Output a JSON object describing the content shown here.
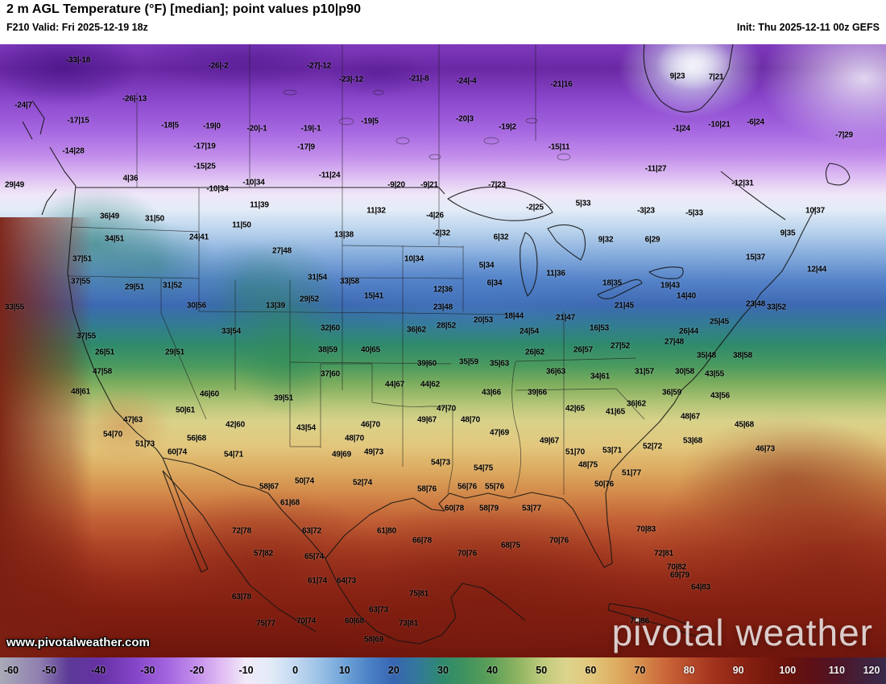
{
  "header": {
    "title": "2 m AGL Temperature (°F) [median]; point values p10|p90",
    "valid": "F210 Valid: Fri 2025-12-19 18z",
    "init": "Init: Thu 2025-12-11 00z GEFS"
  },
  "watermarks": {
    "url": "www.pivotalweather.com",
    "brand": "pivotal weather"
  },
  "colorbar": {
    "unit": "°F",
    "ticks": [
      -60,
      -50,
      -40,
      -30,
      -20,
      -10,
      0,
      10,
      20,
      30,
      40,
      50,
      60,
      70,
      80,
      90,
      100,
      110,
      120
    ],
    "gradient": [
      {
        "v": -60,
        "c": "#a9abb7"
      },
      {
        "v": -52,
        "c": "#8f7fb0"
      },
      {
        "v": -46,
        "c": "#5c3a96"
      },
      {
        "v": -40,
        "c": "#6531a3"
      },
      {
        "v": -32,
        "c": "#8747cb"
      },
      {
        "v": -26,
        "c": "#a465df"
      },
      {
        "v": -20,
        "c": "#c48fec"
      },
      {
        "v": -15,
        "c": "#e0bcf3"
      },
      {
        "v": -10,
        "c": "#f1eaf8"
      },
      {
        "v": -5,
        "c": "#e2ebf7"
      },
      {
        "v": 0,
        "c": "#c2d8f0"
      },
      {
        "v": 5,
        "c": "#9ac1e6"
      },
      {
        "v": 10,
        "c": "#6fa3d8"
      },
      {
        "v": 15,
        "c": "#4a82c6"
      },
      {
        "v": 20,
        "c": "#3765b2"
      },
      {
        "v": 25,
        "c": "#33799a"
      },
      {
        "v": 30,
        "c": "#2f8a6c"
      },
      {
        "v": 35,
        "c": "#42945e"
      },
      {
        "v": 40,
        "c": "#5fa059"
      },
      {
        "v": 45,
        "c": "#8cb360"
      },
      {
        "v": 50,
        "c": "#bcca7a"
      },
      {
        "v": 55,
        "c": "#dcd48c"
      },
      {
        "v": 60,
        "c": "#e2c77c"
      },
      {
        "v": 65,
        "c": "#deae62"
      },
      {
        "v": 70,
        "c": "#d68d4c"
      },
      {
        "v": 75,
        "c": "#ca683a"
      },
      {
        "v": 80,
        "c": "#b84b2a"
      },
      {
        "v": 85,
        "c": "#a2331d"
      },
      {
        "v": 90,
        "c": "#8d2414"
      },
      {
        "v": 95,
        "c": "#7a1a0e"
      },
      {
        "v": 100,
        "c": "#6b130c"
      },
      {
        "v": 105,
        "c": "#5d1016"
      },
      {
        "v": 110,
        "c": "#4f1527"
      },
      {
        "v": 115,
        "c": "#42203a"
      },
      {
        "v": 120,
        "c": "#38294a"
      }
    ]
  },
  "map": {
    "type": "temperature-fill",
    "points": [
      [
        97,
        20,
        "-33|-18"
      ],
      [
        271,
        27,
        "-26|-2"
      ],
      [
        396,
        27,
        "-27|-12"
      ],
      [
        436,
        44,
        "-23|-12"
      ],
      [
        520,
        43,
        "-21|-8"
      ],
      [
        579,
        46,
        "-24|-4"
      ],
      [
        697,
        50,
        "-21|16"
      ],
      [
        841,
        40,
        "9|23"
      ],
      [
        889,
        41,
        "7|21"
      ],
      [
        29,
        76,
        "-24|7"
      ],
      [
        167,
        68,
        "-26|-13"
      ],
      [
        97,
        95,
        "-17|15"
      ],
      [
        211,
        101,
        "-18|5"
      ],
      [
        263,
        102,
        "-19|0"
      ],
      [
        319,
        105,
        "-20|-1"
      ],
      [
        386,
        105,
        "-19|-1"
      ],
      [
        459,
        96,
        "-19|5"
      ],
      [
        577,
        93,
        "-20|3"
      ],
      [
        630,
        103,
        "-19|2"
      ],
      [
        846,
        105,
        "-1|24"
      ],
      [
        893,
        100,
        "-10|21"
      ],
      [
        938,
        97,
        "-6|24"
      ],
      [
        91,
        133,
        "-14|28"
      ],
      [
        254,
        127,
        "-17|19"
      ],
      [
        380,
        128,
        "-17|9"
      ],
      [
        694,
        128,
        "-15|11"
      ],
      [
        1048,
        113,
        "-7|29"
      ],
      [
        162,
        167,
        "4|36"
      ],
      [
        254,
        152,
        "-15|25"
      ],
      [
        270,
        180,
        "-10|34"
      ],
      [
        315,
        172,
        "-10|34"
      ],
      [
        409,
        163,
        "-11|24"
      ],
      [
        492,
        175,
        "-9|20"
      ],
      [
        533,
        175,
        "-9|21"
      ],
      [
        617,
        175,
        "-7|23"
      ],
      [
        814,
        155,
        "-11|27"
      ],
      [
        922,
        173,
        "-12|31"
      ],
      [
        18,
        175,
        "29|49"
      ],
      [
        136,
        214,
        "36|49"
      ],
      [
        322,
        200,
        "11|39"
      ],
      [
        467,
        207,
        "11|32"
      ],
      [
        540,
        213,
        "-4|26"
      ],
      [
        548,
        235,
        "-2|32"
      ],
      [
        664,
        203,
        "-2|25"
      ],
      [
        724,
        198,
        "5|33"
      ],
      [
        802,
        207,
        "-3|23"
      ],
      [
        862,
        210,
        "-5|33"
      ],
      [
        1012,
        207,
        "10|37"
      ],
      [
        978,
        235,
        "9|35"
      ],
      [
        192,
        217,
        "31|50"
      ],
      [
        247,
        240,
        "24|41"
      ],
      [
        142,
        242,
        "34|51"
      ],
      [
        300,
        225,
        "11|50"
      ],
      [
        427,
        237,
        "13|38"
      ],
      [
        350,
        257,
        "27|48"
      ],
      [
        622,
        240,
        "6|32"
      ],
      [
        752,
        243,
        "9|32"
      ],
      [
        810,
        243,
        "6|29"
      ],
      [
        102,
        267,
        "37|51"
      ],
      [
        394,
        290,
        "31|54"
      ],
      [
        514,
        267,
        "10|34"
      ],
      [
        604,
        275,
        "5|34"
      ],
      [
        690,
        285,
        "11|36"
      ],
      [
        938,
        265,
        "15|37"
      ],
      [
        1014,
        280,
        "12|44"
      ],
      [
        100,
        295,
        "37|55"
      ],
      [
        167,
        302,
        "29|51"
      ],
      [
        214,
        300,
        "31|52"
      ],
      [
        434,
        295,
        "33|58"
      ],
      [
        550,
        305,
        "12|36"
      ],
      [
        614,
        297,
        "6|34"
      ],
      [
        760,
        297,
        "18|35"
      ],
      [
        832,
        300,
        "19|43"
      ],
      [
        852,
        313,
        "14|40"
      ],
      [
        938,
        323,
        "23|48"
      ],
      [
        964,
        327,
        "33|52"
      ],
      [
        18,
        327,
        "33|55"
      ],
      [
        244,
        325,
        "30|56"
      ],
      [
        342,
        325,
        "13|39"
      ],
      [
        384,
        317,
        "29|52"
      ],
      [
        464,
        313,
        "15|41"
      ],
      [
        550,
        327,
        "23|48"
      ],
      [
        638,
        338,
        "18|44"
      ],
      [
        702,
        340,
        "21|47"
      ],
      [
        775,
        325,
        "21|45"
      ],
      [
        893,
        345,
        "25|45"
      ],
      [
        855,
        357,
        "26|44"
      ],
      [
        107,
        363,
        "37|55"
      ],
      [
        287,
        357,
        "33|54"
      ],
      [
        410,
        353,
        "32|60"
      ],
      [
        517,
        355,
        "36|62"
      ],
      [
        554,
        350,
        "28|52"
      ],
      [
        600,
        343,
        "20|53"
      ],
      [
        657,
        357,
        "24|54"
      ],
      [
        744,
        353,
        "16|53"
      ],
      [
        770,
        375,
        "27|52"
      ],
      [
        837,
        370,
        "27|48"
      ],
      [
        130,
        383,
        "26|51"
      ],
      [
        217,
        383,
        "29|51"
      ],
      [
        407,
        380,
        "38|59"
      ],
      [
        460,
        380,
        "40|65"
      ],
      [
        530,
        397,
        "39|60"
      ],
      [
        582,
        395,
        "35|59"
      ],
      [
        620,
        397,
        "35|63"
      ],
      [
        664,
        383,
        "26|62"
      ],
      [
        724,
        380,
        "26|57"
      ],
      [
        877,
        387,
        "35|48"
      ],
      [
        922,
        387,
        "38|58"
      ],
      [
        127,
        407,
        "47|58"
      ],
      [
        410,
        410,
        "37|60"
      ],
      [
        690,
        407,
        "36|63"
      ],
      [
        745,
        413,
        "34|61"
      ],
      [
        800,
        407,
        "31|57"
      ],
      [
        850,
        407,
        "30|58"
      ],
      [
        887,
        410,
        "43|55"
      ],
      [
        100,
        432,
        "48|61"
      ],
      [
        260,
        435,
        "46|60"
      ],
      [
        352,
        440,
        "39|51"
      ],
      [
        490,
        423,
        "44|67"
      ],
      [
        534,
        423,
        "44|62"
      ],
      [
        610,
        433,
        "43|66"
      ],
      [
        667,
        433,
        "39|66"
      ],
      [
        834,
        433,
        "36|59"
      ],
      [
        790,
        447,
        "36|62"
      ],
      [
        894,
        437,
        "43|56"
      ],
      [
        230,
        455,
        "50|61"
      ],
      [
        165,
        467,
        "47|63"
      ],
      [
        554,
        453,
        "47|70"
      ],
      [
        530,
        467,
        "49|67"
      ],
      [
        584,
        467,
        "48|70"
      ],
      [
        714,
        453,
        "42|65"
      ],
      [
        764,
        457,
        "41|65"
      ],
      [
        857,
        463,
        "48|67"
      ],
      [
        292,
        473,
        "42|60"
      ],
      [
        380,
        477,
        "43|54"
      ],
      [
        460,
        473,
        "46|70"
      ],
      [
        140,
        485,
        "54|70"
      ],
      [
        244,
        490,
        "56|68"
      ],
      [
        180,
        497,
        "51|73"
      ],
      [
        220,
        507,
        "60|74"
      ],
      [
        290,
        510,
        "54|71"
      ],
      [
        440,
        490,
        "48|70"
      ],
      [
        424,
        510,
        "49|69"
      ],
      [
        464,
        507,
        "49|73"
      ],
      [
        620,
        483,
        "47|69"
      ],
      [
        682,
        493,
        "49|67"
      ],
      [
        714,
        507,
        "51|70"
      ],
      [
        760,
        505,
        "53|71"
      ],
      [
        810,
        500,
        "52|72"
      ],
      [
        860,
        493,
        "53|68"
      ],
      [
        924,
        473,
        "45|68"
      ],
      [
        950,
        503,
        "46|73"
      ],
      [
        547,
        520,
        "54|73"
      ],
      [
        600,
        527,
        "54|75"
      ],
      [
        730,
        523,
        "48|75"
      ],
      [
        750,
        547,
        "50|76"
      ],
      [
        450,
        545,
        "52|74"
      ],
      [
        334,
        550,
        "58|67"
      ],
      [
        378,
        543,
        "50|74"
      ],
      [
        360,
        570,
        "61|68"
      ],
      [
        530,
        553,
        "58|76"
      ],
      [
        580,
        550,
        "56|76"
      ],
      [
        614,
        550,
        "55|76"
      ],
      [
        784,
        533,
        "51|77"
      ],
      [
        564,
        577,
        "60|78"
      ],
      [
        607,
        577,
        "58|79"
      ],
      [
        660,
        577,
        "53|77"
      ],
      [
        387,
        605,
        "63|72"
      ],
      [
        480,
        605,
        "61|80"
      ],
      [
        524,
        617,
        "66|78"
      ],
      [
        580,
        633,
        "70|76"
      ],
      [
        634,
        623,
        "68|75"
      ],
      [
        694,
        617,
        "70|76"
      ],
      [
        300,
        605,
        "72|78"
      ],
      [
        327,
        633,
        "57|82"
      ],
      [
        390,
        637,
        "65|74"
      ],
      [
        802,
        603,
        "70|83"
      ],
      [
        824,
        633,
        "72|81"
      ],
      [
        840,
        650,
        "70|82"
      ],
      [
        394,
        667,
        "61|74"
      ],
      [
        430,
        667,
        "64|73"
      ],
      [
        844,
        660,
        "69|79"
      ],
      [
        870,
        675,
        "64|83"
      ],
      [
        300,
        687,
        "63|78"
      ],
      [
        520,
        683,
        "75|81"
      ],
      [
        470,
        703,
        "63|73"
      ],
      [
        440,
        717,
        "60|68"
      ],
      [
        507,
        720,
        "73|81"
      ],
      [
        330,
        720,
        "75|77"
      ],
      [
        380,
        717,
        "70|74"
      ],
      [
        464,
        740,
        "58|69"
      ],
      [
        794,
        717,
        "79|86"
      ]
    ]
  }
}
